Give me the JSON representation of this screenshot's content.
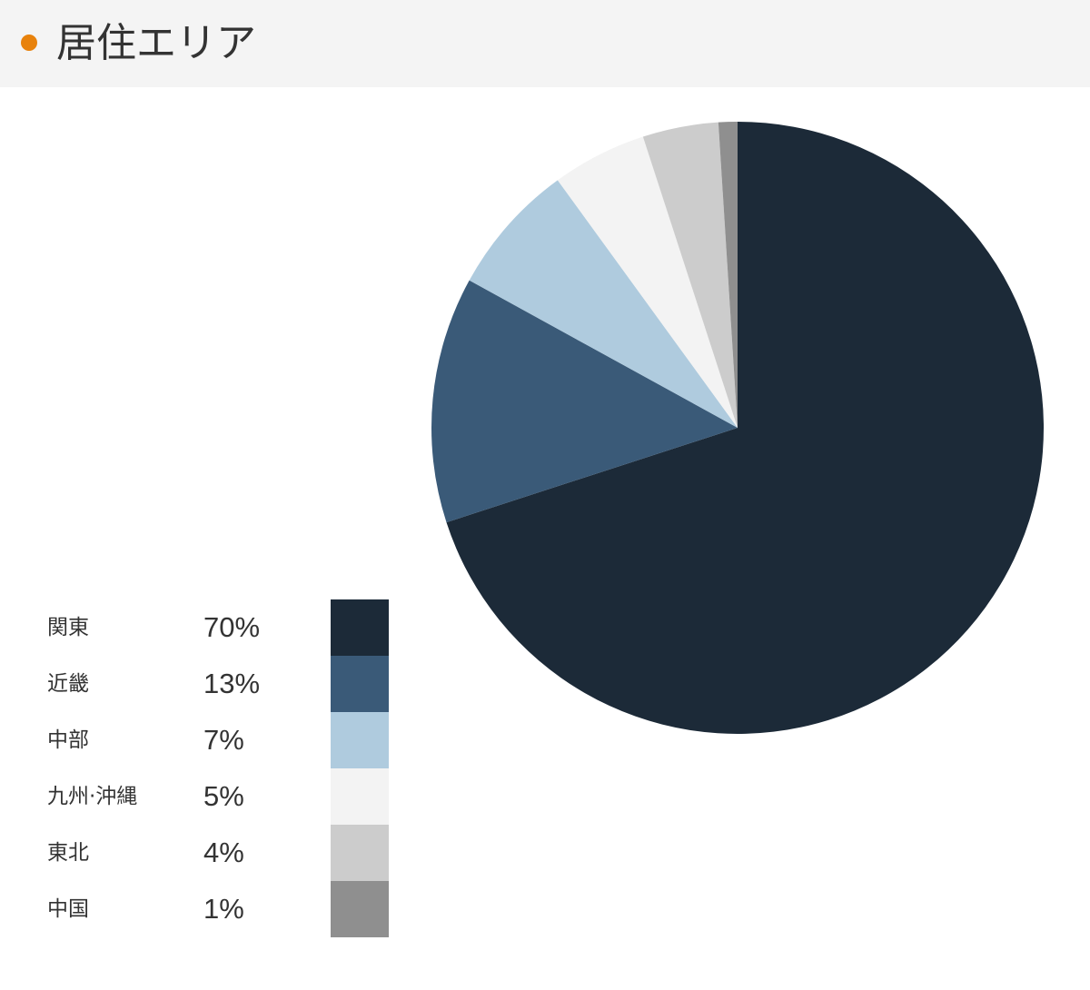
{
  "header": {
    "title": "居住エリア",
    "dot_color": "#e8820c"
  },
  "chart_data": {
    "type": "pie",
    "title": "居住エリア",
    "slices": [
      {
        "label": "関東",
        "value": 70,
        "value_label": "70%",
        "color": "#1c2a38"
      },
      {
        "label": "近畿",
        "value": 13,
        "value_label": "13%",
        "color": "#3a5a78"
      },
      {
        "label": "中部",
        "value": 7,
        "value_label": "7%",
        "color": "#afcbde"
      },
      {
        "label": "九州·沖縄",
        "value": 5,
        "value_label": "5%",
        "color": "#f3f3f3"
      },
      {
        "label": "東北",
        "value": 4,
        "value_label": "4%",
        "color": "#cccccc"
      },
      {
        "label": "中国",
        "value": 1,
        "value_label": "1%",
        "color": "#8f8f8f"
      }
    ],
    "start_angle": "top, clockwise",
    "legend_position": "bottom-left"
  }
}
